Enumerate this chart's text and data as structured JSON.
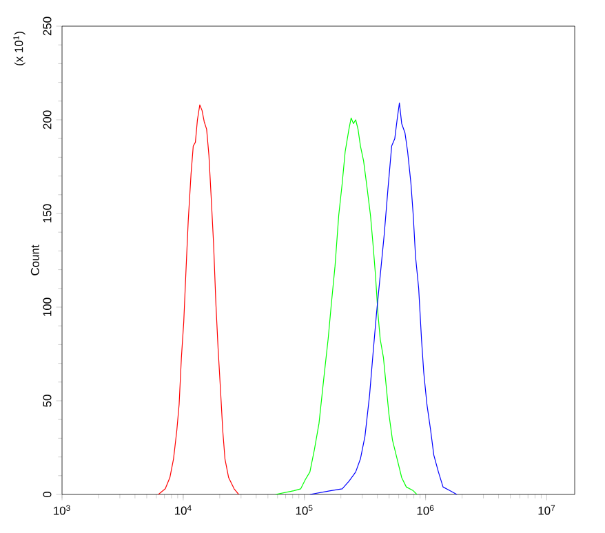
{
  "chart_data": {
    "type": "line",
    "ylabel": "Count",
    "annotations": [
      "(x 10$^{1}$)"
    ],
    "log": "x",
    "grid": false,
    "legend": false,
    "line_style": "solid",
    "xlim": [
      1000,
      17000000
    ],
    "ylim": [
      0,
      250
    ],
    "xticks": [
      {
        "value": 1000,
        "label": "10$^{3}$"
      },
      {
        "value": 10000,
        "label": "10$^{4}$"
      },
      {
        "value": 100000,
        "label": "10$^{5}$"
      },
      {
        "value": 1000000,
        "label": "10$^{6}$"
      },
      {
        "value": 10000000,
        "label": "10$^{7}$"
      }
    ],
    "yticks": [
      0,
      50,
      100,
      150,
      200,
      250
    ],
    "series": [
      {
        "color": "#ff0000",
        "x": [
          6240,
          7110,
          7760,
          8320,
          8850,
          9250,
          9660,
          10100,
          10500,
          11000,
          11600,
          12100,
          12600,
          13100,
          13700,
          14300,
          14900,
          15600,
          16300,
          17000,
          17800,
          18600,
          19400,
          20300,
          21200,
          22100,
          23700,
          26300,
          28700
        ],
        "values": [
          0,
          3,
          9,
          19,
          34,
          48,
          73,
          92,
          117,
          146,
          171,
          186,
          188,
          200,
          208,
          205,
          199,
          195,
          181,
          159,
          134,
          102,
          78,
          56,
          34,
          19,
          9,
          3,
          0
        ]
      },
      {
        "color": "#00ff00",
        "x": [
          57700,
          81800,
          93300,
          101900,
          111000,
          121000,
          132000,
          144000,
          157000,
          167000,
          179000,
          192000,
          205000,
          217000,
          233000,
          243000,
          254000,
          265000,
          277000,
          290000,
          308000,
          330000,
          351000,
          370000,
          386000,
          404000,
          422000,
          449000,
          468000,
          498000,
          533000,
          582000,
          635000,
          693000,
          791000,
          847000
        ],
        "values": [
          0,
          2,
          3,
          8,
          12,
          24,
          38,
          61,
          83,
          102,
          122,
          149,
          166,
          183,
          195,
          201,
          198,
          200,
          195,
          186,
          178,
          163,
          149,
          132,
          117,
          97,
          83,
          73,
          61,
          43,
          29,
          19,
          9,
          4,
          2,
          0
        ]
      },
      {
        "color": "#0000ff",
        "x": [
          111000,
          164000,
          205000,
          233000,
          265000,
          290000,
          316000,
          345000,
          366000,
          394000,
          430000,
          456000,
          489000,
          525000,
          557000,
          582000,
          608000,
          635000,
          676000,
          711000,
          757000,
          791000,
          826000,
          877000,
          925000,
          966000,
          1026000,
          1102000,
          1169000,
          1276000,
          1393000,
          1589000,
          1811000
        ],
        "values": [
          0,
          2,
          3,
          7,
          12,
          19,
          31,
          53,
          73,
          97,
          122,
          139,
          163,
          186,
          190,
          200,
          209,
          198,
          193,
          183,
          166,
          149,
          127,
          110,
          83,
          65,
          48,
          34,
          21,
          12,
          4,
          2,
          0
        ]
      }
    ]
  }
}
